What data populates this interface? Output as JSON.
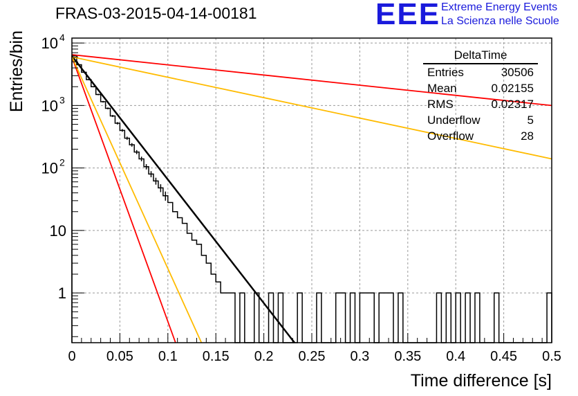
{
  "title": "FRAS-03-2015-04-14-00181",
  "logo": {
    "mark": "EEE",
    "line1": "Extreme Energy Events",
    "line2": "La Scienza nelle Scuole",
    "color": "#1a1adc"
  },
  "stats_box": {
    "name": "DeltaTime",
    "rows": [
      {
        "label": "Entries",
        "value": "30506"
      },
      {
        "label": "Mean",
        "value": "0.02155"
      },
      {
        "label": "RMS",
        "value": "0.02317"
      },
      {
        "label": "Underflow",
        "value": "5"
      },
      {
        "label": "Overflow",
        "value": "28"
      }
    ]
  },
  "chart_data": {
    "type": "histogram",
    "xlabel": "Time difference [s]",
    "ylabel": "Entries/bin",
    "xlim": [
      0,
      0.5
    ],
    "ylim": [
      0.16,
      12000
    ],
    "yscale": "log",
    "grid": true,
    "xticks": [
      "0",
      "0.05",
      "0.1",
      "0.15",
      "0.2",
      "0.25",
      "0.3",
      "0.35",
      "0.4",
      "0.45",
      "0.5"
    ],
    "yticks": [
      {
        "value": 1,
        "label": "1"
      },
      {
        "value": 10,
        "label": "10"
      },
      {
        "value": 100,
        "label": "10",
        "exp": "2"
      },
      {
        "value": 1000,
        "label": "10",
        "exp": "3"
      },
      {
        "value": 10000,
        "label": "10",
        "exp": "4"
      }
    ],
    "bin_width": 0.005,
    "bins": [
      {
        "x": 0.0,
        "y": 6300
      },
      {
        "x": 0.005,
        "y": 4500
      },
      {
        "x": 0.01,
        "y": 3400
      },
      {
        "x": 0.015,
        "y": 2600
      },
      {
        "x": 0.02,
        "y": 2000
      },
      {
        "x": 0.025,
        "y": 1500
      },
      {
        "x": 0.03,
        "y": 1150
      },
      {
        "x": 0.035,
        "y": 900
      },
      {
        "x": 0.04,
        "y": 680
      },
      {
        "x": 0.045,
        "y": 520
      },
      {
        "x": 0.05,
        "y": 400
      },
      {
        "x": 0.055,
        "y": 300
      },
      {
        "x": 0.06,
        "y": 235
      },
      {
        "x": 0.065,
        "y": 180
      },
      {
        "x": 0.07,
        "y": 140
      },
      {
        "x": 0.075,
        "y": 105
      },
      {
        "x": 0.08,
        "y": 80
      },
      {
        "x": 0.085,
        "y": 62
      },
      {
        "x": 0.09,
        "y": 48
      },
      {
        "x": 0.095,
        "y": 36
      },
      {
        "x": 0.1,
        "y": 28
      },
      {
        "x": 0.105,
        "y": 20
      },
      {
        "x": 0.11,
        "y": 16
      },
      {
        "x": 0.115,
        "y": 13
      },
      {
        "x": 0.12,
        "y": 9
      },
      {
        "x": 0.125,
        "y": 7
      },
      {
        "x": 0.13,
        "y": 6
      },
      {
        "x": 0.135,
        "y": 4
      },
      {
        "x": 0.14,
        "y": 3
      },
      {
        "x": 0.145,
        "y": 2
      },
      {
        "x": 0.15,
        "y": 1.5
      },
      {
        "x": 0.155,
        "y": 1
      },
      {
        "x": 0.16,
        "y": 1
      },
      {
        "x": 0.165,
        "y": 1
      },
      {
        "x": 0.17,
        "y": 0
      },
      {
        "x": 0.175,
        "y": 1
      },
      {
        "x": 0.18,
        "y": 0
      },
      {
        "x": 0.185,
        "y": 0
      },
      {
        "x": 0.19,
        "y": 1
      },
      {
        "x": 0.195,
        "y": 0
      },
      {
        "x": 0.2,
        "y": 0
      },
      {
        "x": 0.205,
        "y": 1
      },
      {
        "x": 0.21,
        "y": 0
      },
      {
        "x": 0.215,
        "y": 1
      },
      {
        "x": 0.22,
        "y": 0
      },
      {
        "x": 0.225,
        "y": 0
      },
      {
        "x": 0.23,
        "y": 0
      },
      {
        "x": 0.235,
        "y": 1
      },
      {
        "x": 0.24,
        "y": 0
      },
      {
        "x": 0.245,
        "y": 0
      },
      {
        "x": 0.25,
        "y": 0
      },
      {
        "x": 0.255,
        "y": 1
      },
      {
        "x": 0.26,
        "y": 0
      },
      {
        "x": 0.265,
        "y": 0
      },
      {
        "x": 0.27,
        "y": 0
      },
      {
        "x": 0.275,
        "y": 1
      },
      {
        "x": 0.28,
        "y": 1
      },
      {
        "x": 0.285,
        "y": 0
      },
      {
        "x": 0.29,
        "y": 1
      },
      {
        "x": 0.295,
        "y": 0
      },
      {
        "x": 0.3,
        "y": 1
      },
      {
        "x": 0.305,
        "y": 1
      },
      {
        "x": 0.31,
        "y": 1
      },
      {
        "x": 0.315,
        "y": 0
      },
      {
        "x": 0.32,
        "y": 1
      },
      {
        "x": 0.325,
        "y": 1
      },
      {
        "x": 0.33,
        "y": 1
      },
      {
        "x": 0.335,
        "y": 0
      },
      {
        "x": 0.34,
        "y": 1
      },
      {
        "x": 0.345,
        "y": 0
      },
      {
        "x": 0.35,
        "y": 0
      },
      {
        "x": 0.355,
        "y": 0
      },
      {
        "x": 0.36,
        "y": 0
      },
      {
        "x": 0.365,
        "y": 0
      },
      {
        "x": 0.37,
        "y": 0
      },
      {
        "x": 0.375,
        "y": 0
      },
      {
        "x": 0.38,
        "y": 1
      },
      {
        "x": 0.385,
        "y": 0
      },
      {
        "x": 0.39,
        "y": 1
      },
      {
        "x": 0.395,
        "y": 0
      },
      {
        "x": 0.4,
        "y": 1
      },
      {
        "x": 0.405,
        "y": 0
      },
      {
        "x": 0.41,
        "y": 1
      },
      {
        "x": 0.415,
        "y": 0
      },
      {
        "x": 0.42,
        "y": 1
      },
      {
        "x": 0.425,
        "y": 0
      },
      {
        "x": 0.43,
        "y": 0
      },
      {
        "x": 0.435,
        "y": 0
      },
      {
        "x": 0.44,
        "y": 1
      },
      {
        "x": 0.445,
        "y": 0
      },
      {
        "x": 0.45,
        "y": 0
      },
      {
        "x": 0.455,
        "y": 0
      },
      {
        "x": 0.46,
        "y": 0
      },
      {
        "x": 0.465,
        "y": 0
      },
      {
        "x": 0.47,
        "y": 0
      },
      {
        "x": 0.475,
        "y": 0
      },
      {
        "x": 0.48,
        "y": 0
      },
      {
        "x": 0.485,
        "y": 0
      },
      {
        "x": 0.49,
        "y": 0
      },
      {
        "x": 0.495,
        "y": 1
      }
    ],
    "fits": [
      {
        "color": "#000000",
        "width": 2.5,
        "points": [
          [
            0,
            6200
          ],
          [
            0.232,
            0.16
          ]
        ]
      },
      {
        "color": "#ff0000",
        "width": 1.8,
        "points": [
          [
            0,
            6500
          ],
          [
            0.5,
            1000
          ]
        ]
      },
      {
        "color": "#ffbb00",
        "width": 1.8,
        "points": [
          [
            0,
            6000
          ],
          [
            0.5,
            140
          ]
        ]
      },
      {
        "color": "#ff0000",
        "width": 1.8,
        "points": [
          [
            0,
            6000
          ],
          [
            0.108,
            0.16
          ]
        ]
      },
      {
        "color": "#ffbb00",
        "width": 1.8,
        "points": [
          [
            0,
            6000
          ],
          [
            0.135,
            0.16
          ]
        ]
      }
    ]
  }
}
